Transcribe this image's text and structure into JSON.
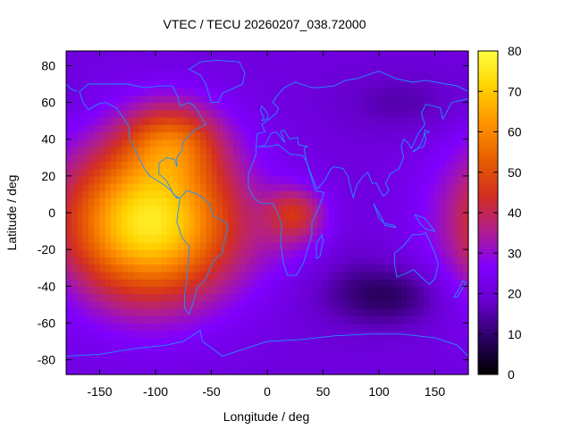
{
  "chart_data": {
    "type": "heatmap",
    "title": "VTEC / TECU 20260207_038.72000",
    "xlabel": "Longitude / deg",
    "ylabel": "Latitude / deg",
    "xlim": [
      -180,
      180
    ],
    "ylim": [
      -88,
      88
    ],
    "xticks": [
      -150,
      -100,
      -50,
      0,
      50,
      100,
      150
    ],
    "yticks": [
      -80,
      -60,
      -40,
      -20,
      0,
      20,
      40,
      60,
      80
    ],
    "colorbar": {
      "range": [
        0,
        80
      ],
      "ticks": [
        0,
        10,
        20,
        30,
        40,
        50,
        60,
        70,
        80
      ],
      "palette": [
        "#000000",
        "#2a0060",
        "#6600cc",
        "#8000ff",
        "#b01e8c",
        "#d4301e",
        "#e86000",
        "#ff9400",
        "#ffd200",
        "#ffff40"
      ]
    },
    "overlay": "coastlines",
    "overlay_color": "#1e90ff",
    "grid": false,
    "legend": "colorbar-right",
    "field": {
      "background_tecu": 21,
      "features": [
        {
          "lon": -105,
          "lat": -5,
          "sigma_lon": 55,
          "sigma_lat": 30,
          "peak_tecu": 55
        },
        {
          "lon": -85,
          "lat": 40,
          "sigma_lon": 30,
          "sigma_lat": 15,
          "peak_tecu": 22
        },
        {
          "lon": 25,
          "lat": 0,
          "sigma_lon": 18,
          "sigma_lat": 10,
          "peak_tecu": 18
        },
        {
          "lon": 30,
          "lat": -15,
          "sigma_lon": 30,
          "sigma_lat": 15,
          "peak_tecu": 6
        },
        {
          "lon": 110,
          "lat": -45,
          "sigma_lon": 35,
          "sigma_lat": 12,
          "peak_tecu": -12
        },
        {
          "lon": 120,
          "lat": 60,
          "sigma_lon": 40,
          "sigma_lat": 12,
          "peak_tecu": -6
        },
        {
          "lon": 60,
          "lat": -30,
          "sigma_lon": 30,
          "sigma_lat": 20,
          "peak_tecu": -4
        }
      ]
    }
  }
}
